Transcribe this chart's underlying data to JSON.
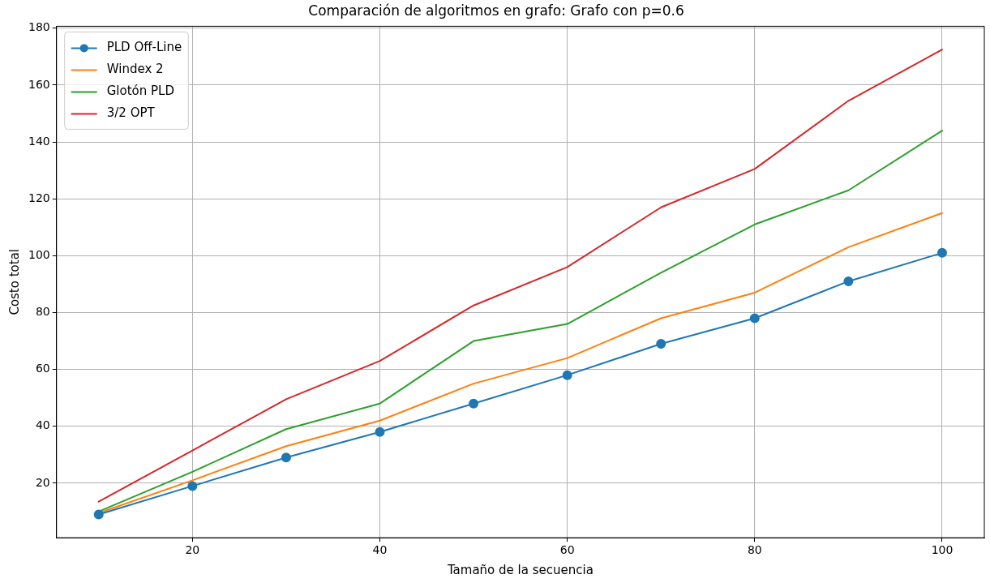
{
  "chart_data": {
    "type": "line",
    "title": "Comparación de algoritmos en grafo: Grafo con p=0.6",
    "xlabel": "Tamaño de la secuencia",
    "ylabel": "Costo total",
    "x": [
      10,
      20,
      30,
      40,
      50,
      60,
      70,
      80,
      90,
      100
    ],
    "series": [
      {
        "name": "PLD Off-Line",
        "color": "#1f77b4",
        "marker": "circle",
        "values": [
          9,
          19,
          29,
          38,
          48,
          58,
          69,
          78,
          91,
          101
        ]
      },
      {
        "name": "Windex 2",
        "color": "#ff7f0e",
        "values": [
          9.5,
          21,
          33,
          42,
          55,
          64,
          78,
          87,
          103,
          115
        ]
      },
      {
        "name": "Glotón PLD",
        "color": "#2ca02c",
        "values": [
          10,
          24,
          39,
          48,
          70,
          76,
          94,
          111,
          123,
          144
        ]
      },
      {
        "name": "3/2 OPT",
        "color": "#d62728",
        "values": [
          13.5,
          31.5,
          49.5,
          63,
          82.5,
          96,
          117,
          130.5,
          154.5,
          172.5
        ]
      }
    ],
    "xlim": [
      5.5,
      104.5
    ],
    "xticks": [
      20,
      40,
      60,
      80,
      100
    ],
    "ylim": [
      0.8,
      180.7
    ],
    "yticks": [
      20,
      40,
      60,
      80,
      100,
      120,
      140,
      160,
      180
    ],
    "grid": true,
    "legend": "top left",
    "marker": "none",
    "line_style": "solid"
  }
}
